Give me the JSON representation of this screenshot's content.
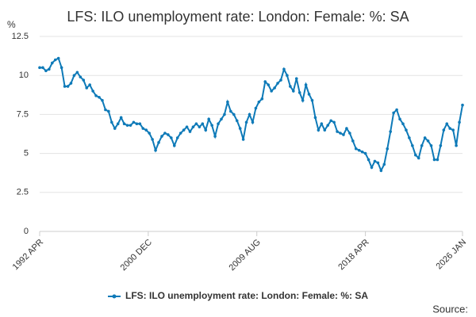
{
  "chart_data": {
    "type": "line",
    "title": "LFS: ILO unemployment rate: London: Female: %: SA",
    "y_label": "%",
    "source": "Source:",
    "xlim": [
      1992.25,
      2026.0
    ],
    "xticks": [
      {
        "value": 1992.25,
        "label": "1992 APR"
      },
      {
        "value": 2000.917,
        "label": "2000 DEC"
      },
      {
        "value": 2009.583,
        "label": "2009 AUG"
      },
      {
        "value": 2018.25,
        "label": "2018 APR"
      },
      {
        "value": 2026.0,
        "label": "2026 JAN"
      }
    ],
    "ylim": [
      0,
      12.5
    ],
    "yticks": [
      0,
      2.5,
      5,
      7.5,
      10,
      12.5
    ],
    "grid": true,
    "legend": "bottom",
    "x": [
      1992.25,
      1992.5,
      1992.75,
      1993.0,
      1993.25,
      1993.5,
      1993.75,
      1994.0,
      1994.25,
      1994.5,
      1994.75,
      1995.0,
      1995.25,
      1995.5,
      1995.75,
      1996.0,
      1996.25,
      1996.5,
      1996.75,
      1997.0,
      1997.25,
      1997.5,
      1997.75,
      1998.0,
      1998.25,
      1998.5,
      1998.75,
      1999.0,
      1999.25,
      1999.5,
      1999.75,
      2000.0,
      2000.25,
      2000.5,
      2000.75,
      2001.0,
      2001.25,
      2001.5,
      2001.75,
      2002.0,
      2002.25,
      2002.5,
      2002.75,
      2003.0,
      2003.25,
      2003.5,
      2003.75,
      2004.0,
      2004.25,
      2004.5,
      2004.75,
      2005.0,
      2005.25,
      2005.5,
      2005.75,
      2006.0,
      2006.25,
      2006.5,
      2006.75,
      2007.0,
      2007.25,
      2007.5,
      2007.75,
      2008.0,
      2008.25,
      2008.5,
      2008.75,
      2009.0,
      2009.25,
      2009.5,
      2009.75,
      2010.0,
      2010.25,
      2010.5,
      2010.75,
      2011.0,
      2011.25,
      2011.5,
      2011.75,
      2012.0,
      2012.25,
      2012.5,
      2012.75,
      2013.0,
      2013.25,
      2013.5,
      2013.75,
      2014.0,
      2014.25,
      2014.5,
      2014.75,
      2015.0,
      2015.25,
      2015.5,
      2015.75,
      2016.0,
      2016.25,
      2016.5,
      2016.75,
      2017.0,
      2017.25,
      2017.5,
      2017.75,
      2018.0,
      2018.25,
      2018.5,
      2018.75,
      2019.0,
      2019.25,
      2019.5,
      2019.75,
      2020.0,
      2020.25,
      2020.5,
      2020.75,
      2021.0,
      2021.25,
      2021.5,
      2021.75,
      2022.0,
      2022.25,
      2022.5,
      2022.75,
      2023.0,
      2023.25,
      2023.5,
      2023.75,
      2024.0,
      2024.25,
      2024.5,
      2024.75,
      2025.0,
      2025.25,
      2025.5,
      2025.75,
      2026.0
    ],
    "series": [
      {
        "name": "LFS: ILO unemployment rate: London: Female: %: SA",
        "color": "#0e7ab8",
        "values": [
          10.5,
          10.5,
          10.3,
          10.4,
          10.8,
          11.0,
          11.1,
          10.5,
          9.3,
          9.3,
          9.5,
          10.0,
          10.2,
          9.9,
          9.7,
          9.2,
          9.4,
          9.0,
          8.7,
          8.6,
          8.4,
          7.8,
          7.7,
          7.0,
          6.6,
          6.9,
          7.3,
          6.9,
          6.8,
          6.8,
          7.0,
          6.9,
          6.9,
          6.6,
          6.5,
          6.3,
          5.9,
          5.2,
          5.7,
          6.1,
          6.3,
          6.2,
          6.0,
          5.5,
          6.0,
          6.3,
          6.5,
          6.7,
          6.4,
          6.7,
          6.9,
          6.7,
          6.9,
          6.5,
          7.2,
          6.8,
          6.1,
          6.9,
          7.2,
          7.5,
          8.3,
          7.7,
          7.5,
          7.1,
          6.6,
          5.9,
          7.0,
          7.5,
          7.0,
          7.9,
          8.3,
          8.5,
          9.6,
          9.4,
          9.0,
          9.2,
          9.5,
          9.7,
          10.4,
          10.0,
          9.3,
          9.0,
          9.8,
          8.9,
          8.4,
          9.4,
          8.8,
          8.4,
          7.3,
          6.5,
          6.9,
          6.5,
          6.8,
          7.1,
          7.0,
          6.4,
          6.3,
          6.2,
          6.6,
          6.3,
          5.8,
          5.3,
          5.2,
          5.1,
          5.0,
          4.6,
          4.1,
          4.5,
          4.4,
          3.9,
          4.3,
          5.3,
          6.4,
          7.6,
          7.8,
          7.2,
          6.9,
          6.5,
          6.0,
          5.5,
          4.9,
          4.7,
          5.5,
          6.0,
          5.8,
          5.5,
          4.6,
          4.6,
          5.5,
          6.5,
          6.9,
          6.6,
          6.5,
          5.5,
          7.0,
          8.1
        ]
      }
    ]
  }
}
